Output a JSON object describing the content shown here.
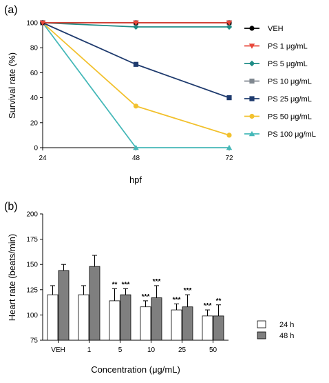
{
  "chart_data": [
    {
      "panel_label": "(a)",
      "type": "line",
      "xlabel": "hpf",
      "ylabel": "Survival rate (%)",
      "x": [
        24,
        48,
        72
      ],
      "xticks": [
        "24",
        "48",
        "72"
      ],
      "ylim": [
        0,
        100
      ],
      "yticks": [
        "0",
        "20",
        "40",
        "60",
        "80",
        "100"
      ],
      "legend_position": "right",
      "grid": false,
      "series": [
        {
          "name": "VEH",
          "values": [
            100,
            100,
            100
          ],
          "color": "#000000",
          "marker": "circle"
        },
        {
          "name": "PS 1 μg/mL",
          "values": [
            100,
            100,
            100
          ],
          "color": "#e8473a",
          "marker": "triangle-down"
        },
        {
          "name": "PS 5 μg/mL",
          "values": [
            100,
            96.7,
            96.7
          ],
          "color": "#1e8c86",
          "marker": "diamond"
        },
        {
          "name": "PS 10 μg/mL",
          "values": [
            100,
            100,
            100
          ],
          "color": "#808890",
          "marker": "square"
        },
        {
          "name": "PS 25 μg/mL",
          "values": [
            100,
            66.7,
            40
          ],
          "color": "#1f3b6e",
          "marker": "square"
        },
        {
          "name": "PS 50 μg/mL",
          "values": [
            100,
            33.3,
            10
          ],
          "color": "#f2c12e",
          "marker": "circle"
        },
        {
          "name": "PS 100 μg/mL",
          "values": [
            100,
            0,
            0
          ],
          "color": "#45b8b8",
          "marker": "triangle-up"
        }
      ]
    },
    {
      "panel_label": "(b)",
      "type": "bar",
      "xlabel": "Concentration (μg/mL)",
      "ylabel": "Heart rate (beats/min)",
      "categories": [
        "VEH",
        "1",
        "5",
        "10",
        "25",
        "50"
      ],
      "ylim": [
        75,
        200
      ],
      "yticks": [
        "75",
        "100",
        "125",
        "150",
        "175",
        "200"
      ],
      "legend_position": "bottom-right",
      "grid": false,
      "series": [
        {
          "name": "24 h",
          "color": "#ffffff",
          "values": [
            120,
            120,
            114,
            108,
            105,
            99
          ],
          "errors": [
            9,
            9,
            12,
            6,
            6,
            6
          ],
          "significance": [
            "",
            "",
            "**",
            "***",
            "***",
            "***"
          ]
        },
        {
          "name": "48 h",
          "color": "#7f7f7f",
          "values": [
            144,
            148,
            120,
            117,
            108,
            99
          ],
          "errors": [
            6,
            11,
            6,
            12,
            12,
            11
          ],
          "significance": [
            "",
            "",
            "***",
            "***",
            "***",
            "**"
          ]
        }
      ]
    }
  ]
}
